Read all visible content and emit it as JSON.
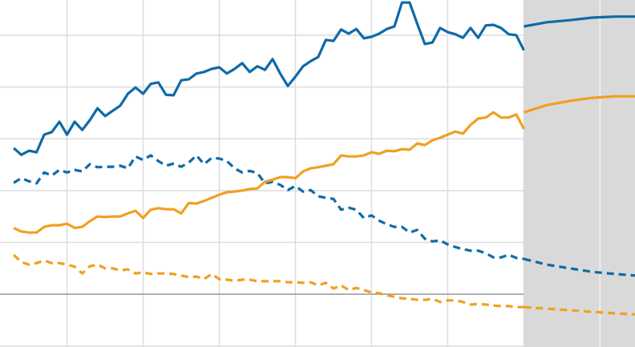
{
  "chart_data": {
    "type": "line",
    "xlim": [
      -1.8,
      81.6
    ],
    "ylim": [
      -10.2,
      56.8
    ],
    "xticks": [
      7,
      17,
      27,
      37,
      47,
      57,
      67,
      77
    ],
    "yticks": [
      -10,
      0,
      10,
      20,
      30,
      40,
      50
    ],
    "baseline": 0,
    "grid": true,
    "shade_x": [
      67,
      81.6
    ],
    "shade_color": "#d9d9d9",
    "series": [
      {
        "color": "#0f6aa8",
        "dashed": false,
        "x": [
          0,
          1,
          2,
          3,
          4,
          5,
          6,
          7,
          8,
          9,
          10,
          11,
          12,
          13,
          14,
          15,
          16,
          17,
          18,
          19,
          20,
          21,
          22,
          23,
          24,
          25,
          26,
          27,
          28,
          29,
          30,
          31,
          32,
          33,
          34,
          35,
          36,
          37,
          38,
          39,
          40,
          41,
          42,
          43,
          44,
          45,
          46,
          47,
          48,
          49,
          50,
          51,
          52,
          53,
          54,
          55,
          56,
          57,
          58,
          59,
          60,
          61,
          62,
          63,
          64,
          65,
          66,
          67
        ],
        "values": [
          28.2,
          26.9,
          27.7,
          27.4,
          30.8,
          31.3,
          33.3,
          30.8,
          33.3,
          31.7,
          33.6,
          35.9,
          34.4,
          35.4,
          36.4,
          38.7,
          39.9,
          38.7,
          40.6,
          40.9,
          38.5,
          38.4,
          41.3,
          41.5,
          42.6,
          42.9,
          43.5,
          43.8,
          42.6,
          43.5,
          44.6,
          42.9,
          44.0,
          43.3,
          45.4,
          42.6,
          40.2,
          42.0,
          44.0,
          45.0,
          45.8,
          49.1,
          48.9,
          51.1,
          50.3,
          51.2,
          49.4,
          49.7,
          50.3,
          51.2,
          51.7,
          56.3,
          56.3,
          52.2,
          48.3,
          48.6,
          51.4,
          50.6,
          50.2,
          49.5,
          51.4,
          49.5,
          51.9,
          52.0,
          51.4,
          50.2,
          50.0,
          47.1
        ]
      },
      {
        "color": "#0f6aa8",
        "dashed": true,
        "x": [
          0,
          1,
          2,
          3,
          4,
          5,
          6,
          7,
          8,
          9,
          10,
          11,
          12,
          13,
          14,
          15,
          16,
          17,
          18,
          19,
          20,
          21,
          22,
          23,
          24,
          25,
          26,
          27,
          28,
          29,
          30,
          31,
          32,
          33,
          34,
          35,
          36,
          37,
          38,
          39,
          40,
          41,
          42,
          43,
          44,
          45,
          46,
          47,
          48,
          49,
          50,
          51,
          52,
          53,
          54,
          55,
          56,
          57,
          58,
          59,
          60,
          61,
          62,
          63,
          64,
          65,
          66,
          67
        ],
        "values": [
          21.5,
          22.4,
          21.8,
          21.4,
          23.5,
          22.9,
          24.0,
          23.5,
          24.0,
          23.7,
          25.1,
          24.5,
          24.6,
          24.6,
          24.8,
          24.3,
          26.6,
          25.9,
          26.8,
          25.7,
          24.8,
          25.2,
          24.6,
          25.4,
          26.8,
          25.1,
          26.3,
          26.2,
          25.7,
          24.3,
          23.5,
          23.8,
          23.4,
          21.4,
          21.7,
          21.1,
          20.1,
          20.9,
          19.8,
          20.1,
          18.9,
          18.6,
          18.4,
          16.3,
          16.7,
          16.3,
          14.7,
          15.2,
          14.2,
          13.5,
          13.0,
          13.0,
          11.9,
          12.4,
          10.7,
          10.2,
          10.4,
          9.6,
          9.1,
          8.7,
          8.4,
          8.4,
          7.9,
          7.1,
          7.1,
          7.6,
          7.0,
          6.8
        ]
      },
      {
        "color": "#f0a020",
        "dashed": false,
        "x": [
          0,
          1,
          2,
          3,
          4,
          5,
          6,
          7,
          8,
          9,
          10,
          11,
          12,
          13,
          14,
          15,
          16,
          17,
          18,
          19,
          20,
          21,
          22,
          23,
          24,
          25,
          26,
          27,
          28,
          29,
          30,
          31,
          32,
          33,
          34,
          35,
          36,
          37,
          38,
          39,
          40,
          41,
          42,
          43,
          44,
          45,
          46,
          47,
          48,
          49,
          50,
          51,
          52,
          53,
          54,
          55,
          56,
          57,
          58,
          59,
          60,
          61,
          62,
          63,
          64,
          65,
          66,
          67
        ],
        "values": [
          12.8,
          12.1,
          11.9,
          11.9,
          13.0,
          13.3,
          13.3,
          13.6,
          12.8,
          13.0,
          14.1,
          15.0,
          14.9,
          15.0,
          15.0,
          15.6,
          16.1,
          14.7,
          16.3,
          16.6,
          16.4,
          16.4,
          15.6,
          17.6,
          17.5,
          18.0,
          18.6,
          19.2,
          19.7,
          19.8,
          20.0,
          20.3,
          20.4,
          21.7,
          22.1,
          22.6,
          22.6,
          22.4,
          23.7,
          24.3,
          24.5,
          24.8,
          25.1,
          26.8,
          26.6,
          26.6,
          26.8,
          27.4,
          27.1,
          27.7,
          27.6,
          28.0,
          27.9,
          29.1,
          28.8,
          29.7,
          30.2,
          30.8,
          31.4,
          31.0,
          32.7,
          33.9,
          34.1,
          35.1,
          34.1,
          34.1,
          34.7,
          31.9
        ]
      },
      {
        "color": "#f0a020",
        "dashed": true,
        "x": [
          0,
          1,
          2,
          3,
          4,
          5,
          6,
          7,
          8,
          9,
          10,
          11,
          12,
          13,
          14,
          15,
          16,
          17,
          18,
          19,
          20,
          21,
          22,
          23,
          24,
          25,
          26,
          27,
          28,
          29,
          30,
          31,
          32,
          33,
          34,
          35,
          36,
          37,
          38,
          39,
          40,
          41,
          42,
          43,
          44,
          45,
          46,
          47,
          48,
          49,
          50,
          51,
          52,
          53,
          54,
          55,
          56,
          57,
          58,
          59,
          60,
          61,
          62,
          63,
          64,
          65,
          66,
          67
        ],
        "values": [
          7.6,
          6.2,
          5.7,
          6.0,
          6.5,
          6.0,
          6.0,
          5.7,
          5.3,
          4.0,
          5.4,
          5.7,
          5.0,
          5.0,
          4.6,
          4.8,
          4.0,
          4.2,
          3.9,
          4.0,
          4.0,
          3.9,
          3.6,
          3.3,
          3.4,
          2.9,
          3.9,
          2.9,
          2.8,
          2.6,
          2.8,
          2.8,
          2.5,
          2.5,
          2.5,
          2.5,
          2.3,
          2.3,
          2.2,
          2.3,
          1.7,
          2.2,
          1.1,
          1.7,
          0.8,
          1.2,
          0.8,
          0.3,
          0.2,
          -0.2,
          -0.5,
          -0.8,
          -0.9,
          -1.1,
          -1.1,
          -0.9,
          -1.5,
          -1.2,
          -1.2,
          -1.5,
          -2.0,
          -1.9,
          -2.0,
          -2.2,
          -2.3,
          -2.3,
          -2.5,
          -2.5
        ]
      },
      {
        "color": "#0f6aa8",
        "dashed": false,
        "x": [
          67,
          70,
          73,
          76,
          79,
          81.6
        ],
        "values": [
          51.7,
          52.5,
          52.9,
          53.4,
          53.6,
          53.6
        ]
      },
      {
        "color": "#f0a020",
        "dashed": false,
        "x": [
          67,
          70,
          73,
          76,
          79,
          81.6
        ],
        "values": [
          35.1,
          36.5,
          37.3,
          37.9,
          38.2,
          38.2
        ]
      },
      {
        "color": "#0f6aa8",
        "dashed": true,
        "x": [
          67,
          70,
          73,
          76,
          79,
          81.6
        ],
        "values": [
          6.8,
          5.7,
          5.0,
          4.3,
          3.9,
          3.6
        ]
      },
      {
        "color": "#f0a020",
        "dashed": true,
        "x": [
          67,
          70,
          73,
          76,
          79,
          81.6
        ],
        "values": [
          -2.5,
          -2.8,
          -3.1,
          -3.4,
          -3.7,
          -3.9
        ]
      }
    ]
  }
}
